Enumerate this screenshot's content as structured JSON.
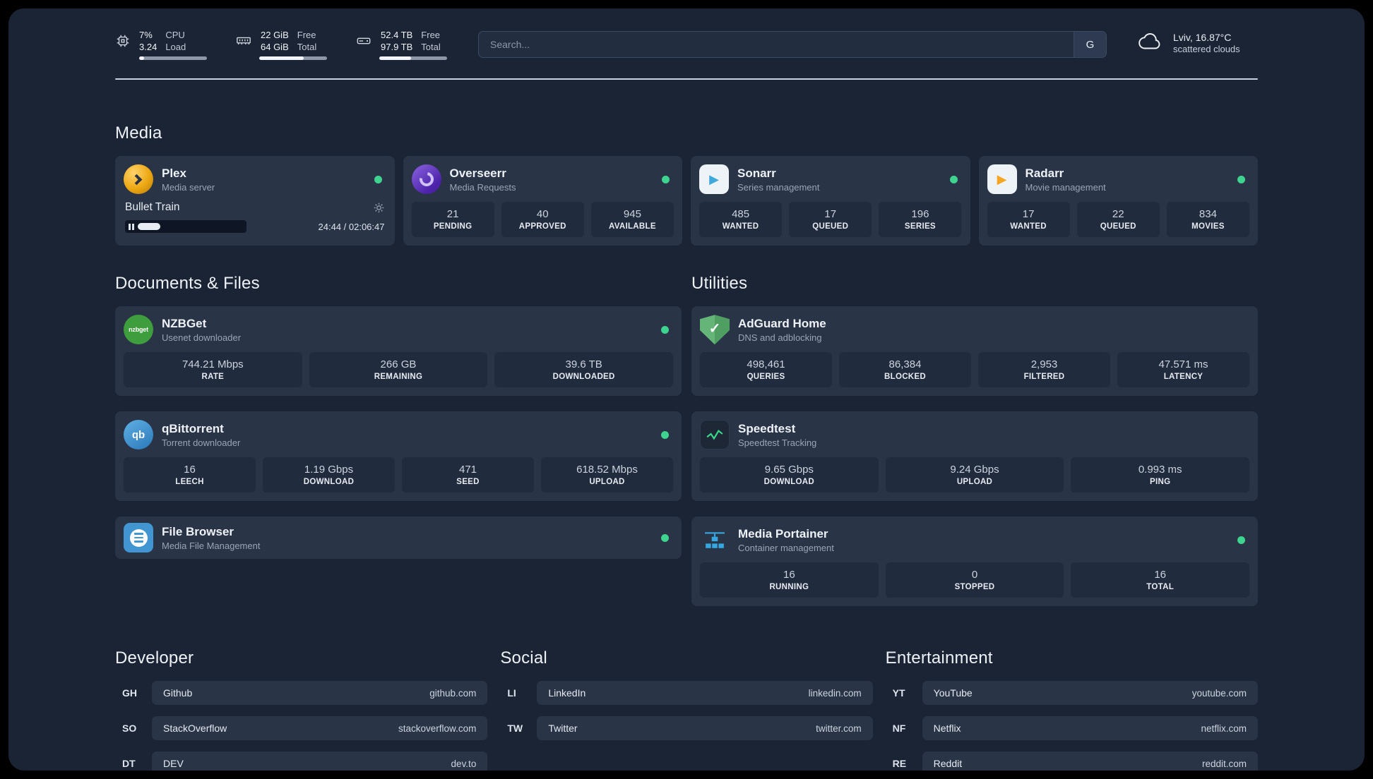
{
  "topbar": {
    "cpu": {
      "value_top": "7%",
      "value_bottom": "3.24",
      "label_top": "CPU",
      "label_bottom": "Load",
      "bar_percent": 7
    },
    "ram": {
      "value_top": "22 GiB",
      "value_bottom": "64 GiB",
      "label_top": "Free",
      "label_bottom": "Total",
      "bar_percent": 66
    },
    "disk": {
      "value_top": "52.4 TB",
      "value_bottom": "97.9 TB",
      "label_top": "Free",
      "label_bottom": "Total",
      "bar_percent": 47
    },
    "search": {
      "placeholder": "Search...",
      "engine_label": "G"
    },
    "weather": {
      "location": "Lviv, 16.87°C",
      "condition": "scattered clouds"
    }
  },
  "sections": {
    "media": {
      "title": "Media"
    },
    "documents": {
      "title": "Documents & Files"
    },
    "utilities": {
      "title": "Utilities"
    }
  },
  "apps": {
    "plex": {
      "name": "Plex",
      "subtitle": "Media server",
      "now_playing": {
        "title": "Bullet Train",
        "time": "24:44 / 02:06:47",
        "progress_percent": 20
      }
    },
    "overseerr": {
      "name": "Overseerr",
      "subtitle": "Media Requests",
      "stats": [
        {
          "value": "21",
          "label": "PENDING"
        },
        {
          "value": "40",
          "label": "APPROVED"
        },
        {
          "value": "945",
          "label": "AVAILABLE"
        }
      ]
    },
    "sonarr": {
      "name": "Sonarr",
      "subtitle": "Series management",
      "stats": [
        {
          "value": "485",
          "label": "WANTED"
        },
        {
          "value": "17",
          "label": "QUEUED"
        },
        {
          "value": "196",
          "label": "SERIES"
        }
      ]
    },
    "radarr": {
      "name": "Radarr",
      "subtitle": "Movie management",
      "stats": [
        {
          "value": "17",
          "label": "WANTED"
        },
        {
          "value": "22",
          "label": "QUEUED"
        },
        {
          "value": "834",
          "label": "MOVIES"
        }
      ]
    },
    "nzbget": {
      "name": "NZBGet",
      "subtitle": "Usenet downloader",
      "icon_text": "nzbget",
      "stats": [
        {
          "value": "744.21 Mbps",
          "label": "RATE"
        },
        {
          "value": "266 GB",
          "label": "REMAINING"
        },
        {
          "value": "39.6 TB",
          "label": "DOWNLOADED"
        }
      ]
    },
    "qbittorrent": {
      "name": "qBittorrent",
      "subtitle": "Torrent downloader",
      "icon_text": "qb",
      "stats": [
        {
          "value": "16",
          "label": "LEECH"
        },
        {
          "value": "1.19 Gbps",
          "label": "DOWNLOAD"
        },
        {
          "value": "471",
          "label": "SEED"
        },
        {
          "value": "618.52 Mbps",
          "label": "UPLOAD"
        }
      ]
    },
    "filebrowser": {
      "name": "File Browser",
      "subtitle": "Media File Management"
    },
    "adguard": {
      "name": "AdGuard Home",
      "subtitle": "DNS and adblocking",
      "stats": [
        {
          "value": "498,461",
          "label": "QUERIES"
        },
        {
          "value": "86,384",
          "label": "BLOCKED"
        },
        {
          "value": "2,953",
          "label": "FILTERED"
        },
        {
          "value": "47.571 ms",
          "label": "LATENCY"
        }
      ]
    },
    "speedtest": {
      "name": "Speedtest",
      "subtitle": "Speedtest Tracking",
      "stats": [
        {
          "value": "9.65 Gbps",
          "label": "DOWNLOAD"
        },
        {
          "value": "9.24 Gbps",
          "label": "UPLOAD"
        },
        {
          "value": "0.993 ms",
          "label": "PING"
        }
      ]
    },
    "portainer": {
      "name": "Media Portainer",
      "subtitle": "Container management",
      "stats": [
        {
          "value": "16",
          "label": "RUNNING"
        },
        {
          "value": "0",
          "label": "STOPPED"
        },
        {
          "value": "16",
          "label": "TOTAL"
        }
      ]
    }
  },
  "bookmarks": {
    "developer": {
      "title": "Developer",
      "items": [
        {
          "abbr": "GH",
          "name": "Github",
          "url": "github.com"
        },
        {
          "abbr": "SO",
          "name": "StackOverflow",
          "url": "stackoverflow.com"
        },
        {
          "abbr": "DT",
          "name": "DEV",
          "url": "dev.to"
        }
      ]
    },
    "social": {
      "title": "Social",
      "items": [
        {
          "abbr": "LI",
          "name": "LinkedIn",
          "url": "linkedin.com"
        },
        {
          "abbr": "TW",
          "name": "Twitter",
          "url": "twitter.com"
        }
      ]
    },
    "entertainment": {
      "title": "Entertainment",
      "items": [
        {
          "abbr": "YT",
          "name": "YouTube",
          "url": "youtube.com"
        },
        {
          "abbr": "NF",
          "name": "Netflix",
          "url": "netflix.com"
        },
        {
          "abbr": "RE",
          "name": "Reddit",
          "url": "reddit.com"
        }
      ]
    }
  },
  "colors": {
    "status_green": "#3fd390",
    "background": "#1b2434",
    "card": "#293447"
  }
}
